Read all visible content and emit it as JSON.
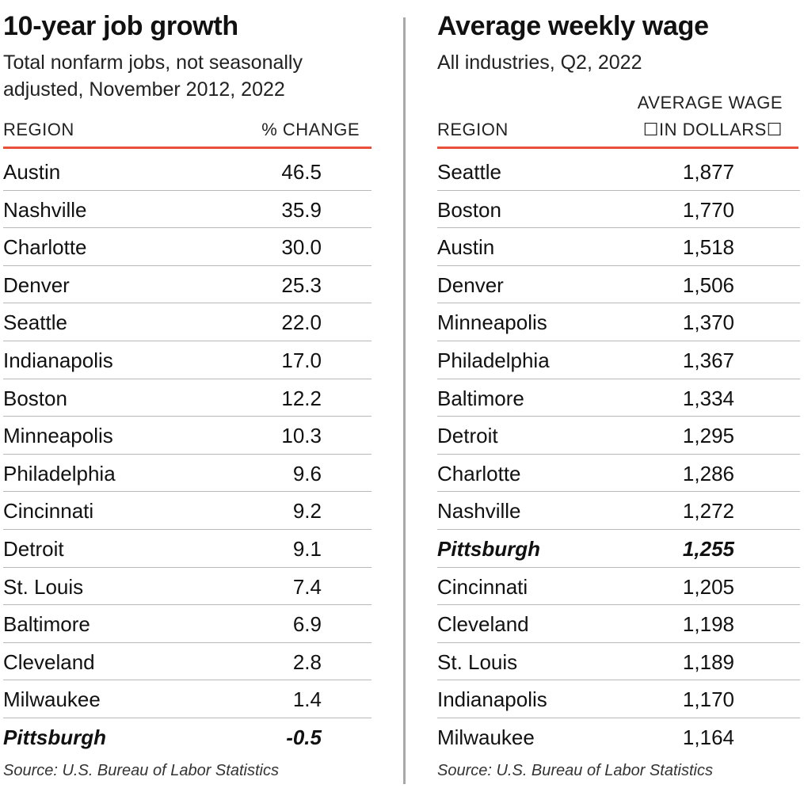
{
  "chart_data": [
    {
      "type": "table",
      "title": "10-year job growth",
      "subtitle": "Total nonfarm jobs, not seasonally adjusted, November 2012, 2022",
      "columns": [
        "REGION",
        "% CHANGE"
      ],
      "categories": [
        "Austin",
        "Nashville",
        "Charlotte",
        "Denver",
        "Seattle",
        "Indianapolis",
        "Boston",
        "Minneapolis",
        "Philadelphia",
        "Cincinnati",
        "Detroit",
        "St. Louis",
        "Baltimore",
        "Cleveland",
        "Milwaukee",
        "Pittsburgh"
      ],
      "values": [
        "46.5",
        "35.9",
        "30.0",
        "25.3",
        "22.0",
        "17.0",
        "12.2",
        "10.3",
        "9.6",
        "9.2",
        "9.1",
        "7.4",
        "6.9",
        "2.8",
        "1.4",
        "-0.5"
      ],
      "highlight": "Pittsburgh",
      "source": "Source: U.S. Bureau of Labor Statistics"
    },
    {
      "type": "table",
      "title": "Average weekly wage",
      "subtitle": "All industries, Q2, 2022",
      "columns": [
        "REGION",
        "AVERAGE WAGE",
        "☐IN DOLLARS☐"
      ],
      "categories": [
        "Seattle",
        "Boston",
        "Austin",
        "Denver",
        "Minneapolis",
        "Philadelphia",
        "Baltimore",
        "Detroit",
        "Charlotte",
        "Nashville",
        "Pittsburgh",
        "Cincinnati",
        "Cleveland",
        "St. Louis",
        "Indianapolis",
        "Milwaukee"
      ],
      "values": [
        "1,877",
        "1,770",
        "1,518",
        "1,506",
        "1,370",
        "1,367",
        "1,334",
        "1,295",
        "1,286",
        "1,272",
        "1,255",
        "1,205",
        "1,198",
        "1,189",
        "1,170",
        "1,164"
      ],
      "highlight": "Pittsburgh",
      "source": "Source: U.S. Bureau of Labor Statistics"
    }
  ],
  "colors": {
    "accent_rule": "#e8503a",
    "divider": "#a8a8a8",
    "row_rule": "#b8b8b8",
    "text": "#111111"
  }
}
